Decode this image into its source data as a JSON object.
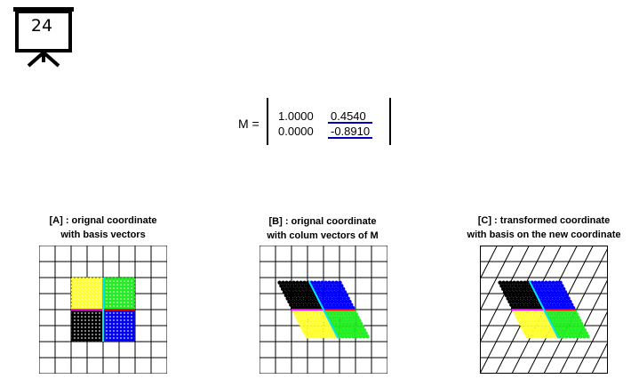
{
  "slide": {
    "number": "24",
    "icon": "projector-screen-icon"
  },
  "matrix": {
    "label": "M =",
    "rows": [
      [
        "1.0000",
        "0.4540"
      ],
      [
        "0.0000",
        "-0.8910"
      ]
    ],
    "column_underline_color": "#0000c0"
  },
  "panels": [
    {
      "title_line1": "[A] : orignal coordinate",
      "title_line2": "with basis vectors"
    },
    {
      "title_line1": "[B] : orignal coordinate",
      "title_line2": "with colum vectors of M"
    },
    {
      "title_line1": "[C] : transformed coordinate",
      "title_line2": "with basis on the new coordinate"
    }
  ],
  "colors": {
    "quadrant_top_left": "#ffff33",
    "quadrant_top_right": "#22ee22",
    "quadrant_bottom_left": "#000000",
    "quadrant_bottom_right": "#0000ff",
    "basis_x": "#ff0000",
    "basis_y": "#00e5ff",
    "axis_mix": "#ff00ff"
  },
  "transform": {
    "a": 1.0,
    "b": 0.454,
    "c": 0.0,
    "d": -0.891
  }
}
